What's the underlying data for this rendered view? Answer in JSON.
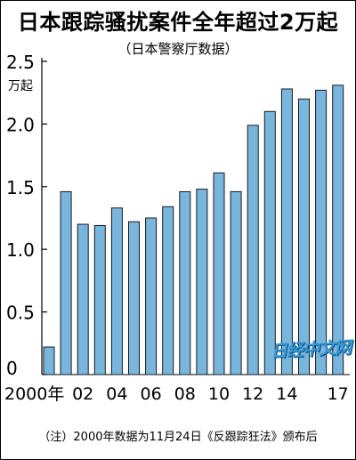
{
  "chart_data": {
    "type": "bar",
    "title": "日本跟踪骚扰案件全年超过2万起",
    "subtitle": "（日本警察厅数据）",
    "unit": "万起",
    "ylim": [
      0,
      2.5
    ],
    "yticks": [
      "2.5",
      "2.0",
      "1.5",
      "1.0",
      "0.5",
      "0"
    ],
    "ytick_values": [
      2.5,
      2.0,
      1.5,
      1.0,
      0.5,
      0
    ],
    "categories": [
      "2000",
      "2001",
      "2002",
      "2003",
      "2004",
      "2005",
      "2006",
      "2007",
      "2008",
      "2009",
      "2010",
      "2011",
      "2012",
      "2013",
      "2014",
      "2015",
      "2016",
      "2017"
    ],
    "values": [
      0.22,
      1.46,
      1.2,
      1.19,
      1.33,
      1.22,
      1.25,
      1.34,
      1.46,
      1.48,
      1.61,
      1.46,
      1.99,
      2.1,
      2.28,
      2.2,
      2.27,
      2.31
    ],
    "xtick_labels": [
      {
        "index": 0,
        "text": "2000年"
      },
      {
        "index": 2,
        "text": "02"
      },
      {
        "index": 4,
        "text": "04"
      },
      {
        "index": 6,
        "text": "06"
      },
      {
        "index": 8,
        "text": "08"
      },
      {
        "index": 10,
        "text": "10"
      },
      {
        "index": 12,
        "text": "12"
      },
      {
        "index": 14,
        "text": "14"
      },
      {
        "index": 17,
        "text": "17"
      }
    ],
    "bar_color": "#79b6dd",
    "bar_stroke": "#1a1a1a",
    "grid": false,
    "note": "（注）2000年数据为11月24日《反跟踪狂法》颁布后"
  },
  "watermark": "日经中文网",
  "colors": {
    "watermark": "#3b9ad1"
  }
}
